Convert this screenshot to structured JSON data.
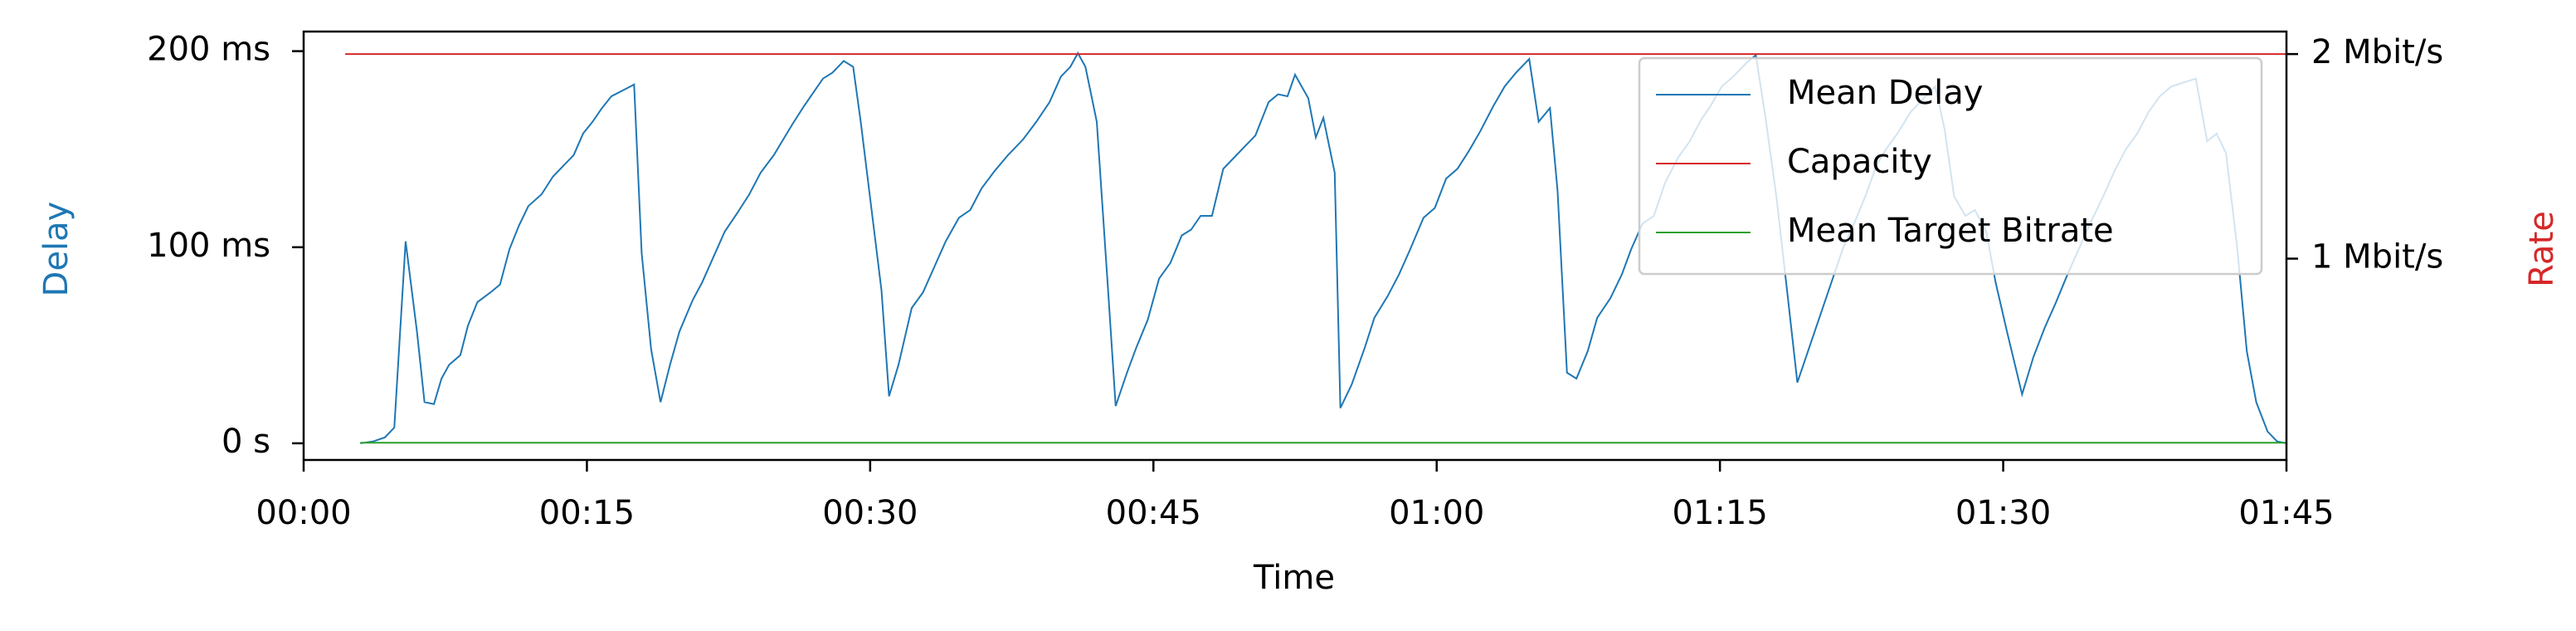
{
  "chart_data": {
    "type": "line",
    "x_label": "Time",
    "y_label": "Delay",
    "y2_label": "Rate",
    "xlim": [
      0,
      105
    ],
    "xticks": [
      {
        "value": 0,
        "label": "00:00"
      },
      {
        "value": 15,
        "label": "00:15"
      },
      {
        "value": 30,
        "label": "00:30"
      },
      {
        "value": 45,
        "label": "00:45"
      },
      {
        "value": 60,
        "label": "01:00"
      },
      {
        "value": 75,
        "label": "01:15"
      },
      {
        "value": 90,
        "label": "01:30"
      },
      {
        "value": 105,
        "label": "01:45"
      }
    ],
    "ylim": [
      -8.5,
      210
    ],
    "yticks": [
      {
        "value": 0,
        "label": "0 s"
      },
      {
        "value": 100,
        "label": "100 ms"
      },
      {
        "value": 200,
        "label": "200 ms"
      }
    ],
    "y2lim": [
      0.016,
      2.11
    ],
    "y2ticks": [
      {
        "value": 1,
        "label": "1 Mbit/s"
      },
      {
        "value": 2,
        "label": "2 Mbit/s"
      }
    ],
    "legend": "upper right",
    "series": [
      {
        "name": "Mean Delay",
        "color": "#1f77b4",
        "x": [
          3.0,
          3.7,
          4.3,
          4.8,
          5.4,
          6.0,
          6.4,
          6.9,
          7.3,
          7.7,
          8.3,
          8.7,
          9.2,
          9.9,
          10.4,
          10.9,
          11.4,
          11.9,
          12.6,
          13.2,
          13.8,
          14.3,
          14.8,
          15.3,
          15.8,
          16.3,
          16.9,
          17.5,
          17.9,
          18.4,
          18.9,
          19.4,
          19.9,
          20.6,
          21.1,
          21.7,
          22.3,
          23.0,
          23.6,
          24.2,
          24.9,
          25.4,
          25.9,
          26.5,
          27.0,
          27.5,
          28.0,
          28.6,
          29.1,
          29.5,
          30.6,
          31.0,
          31.5,
          32.2,
          32.8,
          33.4,
          34.0,
          34.7,
          35.3,
          35.9,
          36.6,
          37.3,
          38.1,
          38.8,
          39.5,
          40.1,
          40.6,
          41.0,
          41.4,
          42.0,
          42.6,
          43.0,
          43.6,
          44.1,
          44.7,
          45.3,
          45.9,
          46.5,
          47.0,
          47.5,
          48.1,
          48.7,
          49.2,
          49.8,
          50.4,
          51.1,
          51.6,
          52.1,
          52.5,
          53.2,
          53.6,
          54.0,
          54.6,
          54.9,
          55.5,
          56.2,
          56.7,
          57.4,
          58.0,
          58.6,
          59.3,
          59.9,
          60.5,
          61.1,
          61.7,
          62.3,
          63.0,
          63.6,
          64.2,
          64.9,
          65.4,
          66.0,
          66.4,
          66.9,
          67.4,
          68.0,
          68.5,
          69.2,
          69.8,
          70.3,
          70.9,
          71.5,
          72.1,
          72.8,
          73.4,
          74.0,
          74.5,
          75.1,
          75.7,
          76.4,
          76.9,
          77.4,
          78.0,
          78.6,
          79.1,
          79.7,
          80.3,
          80.9,
          81.5,
          82.1,
          82.7,
          83.3,
          83.8,
          84.4,
          85.1,
          85.7,
          86.4,
          86.9,
          87.4,
          88.0,
          88.5,
          89.1,
          89.6,
          90.2,
          91.0,
          91.6,
          92.2,
          92.8,
          93.4,
          94.0,
          94.6,
          95.3,
          95.9,
          96.5,
          97.1,
          97.7,
          98.3,
          98.9,
          100.2,
          100.8,
          101.3,
          101.8,
          102.4,
          102.9,
          103.4,
          104.0,
          104.5,
          105.0
        ],
        "values": [
          0,
          1,
          3,
          8,
          103,
          57,
          21,
          20,
          33,
          40,
          45,
          60,
          72,
          77,
          81,
          99,
          111,
          121,
          127,
          136,
          142,
          147,
          158,
          164,
          171,
          177,
          180,
          183,
          97,
          48,
          21,
          40,
          57,
          73,
          82,
          95,
          108,
          118,
          127,
          138,
          147,
          155,
          163,
          172,
          179,
          186,
          189,
          195,
          192,
          164,
          78,
          24,
          40,
          69,
          77,
          90,
          103,
          115,
          119,
          130,
          139,
          147,
          155,
          164,
          174,
          187,
          192,
          199,
          192,
          164,
          78,
          19,
          36,
          49,
          63,
          84,
          92,
          106,
          109,
          116,
          116,
          140,
          145,
          151,
          157,
          174,
          178,
          177,
          188,
          176,
          156,
          166,
          138,
          18,
          30,
          49,
          64,
          75,
          86,
          99,
          115,
          120,
          135,
          140,
          149,
          159,
          172,
          182,
          189,
          196,
          164,
          171,
          129,
          36,
          33,
          47,
          64,
          74,
          86,
          99,
          112,
          116,
          133,
          146,
          154,
          165,
          172,
          182,
          187,
          194,
          198,
          167,
          125,
          74,
          31,
          48,
          65,
          82,
          99,
          112,
          126,
          142,
          150,
          158,
          169,
          175,
          182,
          160,
          126,
          116,
          119,
          108,
          82,
          57,
          25,
          44,
          59,
          72,
          86,
          99,
          112,
          126,
          139,
          150,
          158,
          169,
          177,
          182,
          186,
          154,
          158,
          148,
          99,
          47,
          21,
          6,
          1,
          0
        ]
      },
      {
        "name": "Capacity",
        "color": "#d62728",
        "axis": "y2",
        "x": [
          2.2,
          105
        ],
        "values": [
          2,
          2
        ]
      },
      {
        "name": "Mean Target Bitrate",
        "color": "#2ca02c",
        "axis": "y2",
        "x": [
          3.0,
          105
        ],
        "values": [
          0.1,
          0.1
        ]
      }
    ]
  }
}
